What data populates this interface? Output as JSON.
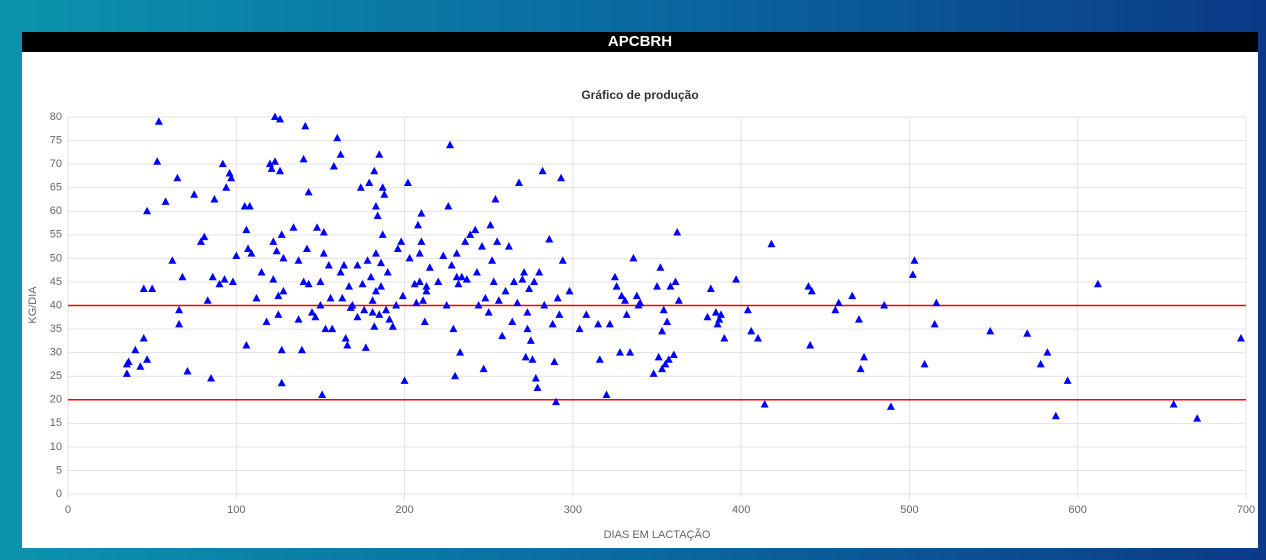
{
  "header": "APCBRH",
  "chart_data": {
    "type": "scatter",
    "title": "Gráfico de produção",
    "xlabel": "DIAS EM LACTAÇÃO",
    "ylabel": "KG/DIA",
    "color": "#0000ff",
    "x": [
      35,
      35,
      36,
      40,
      43,
      45,
      45,
      47,
      47,
      50,
      53,
      54,
      58,
      62,
      65,
      66,
      66,
      68,
      71,
      75,
      79,
      81,
      83,
      85,
      86,
      87,
      90,
      92,
      93,
      94,
      96,
      97,
      98,
      100,
      105,
      106,
      106,
      107,
      108,
      109,
      112,
      115,
      118,
      120,
      121,
      122,
      122,
      123,
      123,
      124,
      125,
      125,
      126,
      126,
      127,
      127,
      127,
      128,
      128,
      134,
      137,
      137,
      139,
      140,
      140,
      141,
      142,
      143,
      143,
      145,
      147,
      148,
      150,
      150,
      151,
      152,
      152,
      153,
      155,
      156,
      157,
      158,
      160,
      162,
      162,
      163,
      164,
      165,
      166,
      167,
      168,
      169,
      172,
      172,
      174,
      175,
      176,
      177,
      178,
      179,
      180,
      181,
      181,
      182,
      182,
      183,
      183,
      183,
      184,
      185,
      185,
      186,
      186,
      187,
      187,
      188,
      189,
      190,
      191,
      193,
      195,
      196,
      198,
      199,
      200,
      202,
      203,
      206,
      207,
      208,
      209,
      209,
      210,
      210,
      211,
      212,
      213,
      213,
      215,
      220,
      223,
      225,
      226,
      227,
      228,
      229,
      230,
      231,
      231,
      232,
      233,
      234,
      236,
      237,
      239,
      242,
      243,
      244,
      246,
      247,
      248,
      250,
      251,
      252,
      253,
      254,
      255,
      256,
      258,
      260,
      262,
      264,
      265,
      267,
      268,
      270,
      271,
      272,
      273,
      273,
      274,
      275,
      276,
      277,
      278,
      279,
      280,
      282,
      283,
      286,
      288,
      289,
      290,
      291,
      292,
      293,
      294,
      298,
      304,
      308,
      315,
      316,
      320,
      322,
      325,
      326,
      328,
      329,
      331,
      332,
      334,
      336,
      338,
      339,
      340,
      348,
      350,
      351,
      352,
      353,
      353,
      354,
      355,
      356,
      357,
      358,
      360,
      361,
      362,
      363,
      380,
      382,
      385,
      386,
      387,
      388,
      390,
      397,
      404,
      406,
      410,
      414,
      418,
      440,
      441,
      442,
      456,
      458,
      466,
      470,
      471,
      473,
      485,
      489,
      502,
      503,
      509,
      515,
      516,
      548,
      570,
      578,
      582,
      587,
      594,
      612,
      657,
      671,
      697
    ],
    "values": [
      25.5,
      27.5,
      28,
      30.5,
      27,
      33,
      43.5,
      28.5,
      60,
      43.5,
      70.5,
      79,
      62,
      49.5,
      67,
      36,
      39,
      46,
      26,
      63.5,
      53.5,
      54.5,
      41,
      24.5,
      46,
      62.5,
      44.5,
      70,
      45.5,
      65,
      68,
      67,
      45,
      50.5,
      61,
      56,
      31.5,
      52,
      61,
      51,
      41.5,
      47,
      36.5,
      70,
      69,
      53.5,
      45.5,
      70.5,
      80,
      51.5,
      38,
      42,
      79.5,
      68.5,
      23.5,
      30.5,
      55,
      50,
      43,
      56.5,
      37,
      49.5,
      30.5,
      71,
      45,
      78,
      52,
      44.5,
      64,
      38.5,
      37.5,
      56.5,
      40,
      45,
      21,
      55.5,
      51,
      35,
      48.5,
      41.5,
      35,
      69.5,
      75.5,
      72,
      47,
      41.5,
      48.5,
      33,
      31.5,
      44,
      39.5,
      40,
      37.5,
      48.5,
      65,
      44.5,
      39,
      31,
      49.5,
      66,
      46,
      38.5,
      41,
      35.5,
      68.5,
      43,
      51,
      61,
      59,
      38,
      72,
      44,
      49,
      55,
      65,
      63.5,
      39,
      47,
      37,
      35.5,
      40,
      52,
      53.5,
      42,
      24,
      66,
      50,
      44.5,
      40.5,
      57,
      51,
      45,
      53.5,
      59.5,
      41,
      36.5,
      44,
      43,
      48,
      45,
      50.5,
      40,
      61,
      74,
      48.5,
      35,
      25,
      51,
      46,
      44.5,
      30,
      46,
      53.5,
      45.5,
      55,
      56,
      47,
      40,
      52.5,
      26.5,
      41.5,
      38.5,
      57,
      49.5,
      45,
      62.5,
      53.5,
      41,
      33.5,
      43,
      52.5,
      36.5,
      45,
      40.5,
      66,
      45.5,
      47,
      29,
      38.5,
      35,
      43.5,
      32.5,
      28.5,
      45,
      24.5,
      22.5,
      47,
      68.5,
      40,
      54,
      36,
      28,
      19.5,
      41.5,
      38,
      67,
      49.5,
      43,
      35,
      38,
      36,
      28.5,
      21,
      36,
      46,
      44,
      30,
      42,
      41,
      38,
      30,
      50,
      42,
      40,
      40.5,
      25.5,
      44,
      29,
      48,
      26.5,
      34.5,
      39,
      27.5,
      36.5,
      28.5,
      44,
      29.5,
      45,
      55.5,
      41,
      37.5,
      43.5,
      38.5,
      36,
      37,
      38,
      33,
      45.5,
      39,
      34.5,
      33,
      19,
      53,
      44,
      31.5,
      43,
      39,
      40.5,
      42,
      37,
      26.5,
      29,
      40,
      18.5,
      46.5,
      49.5,
      27.5,
      36,
      40.5,
      34.5,
      34,
      27.5,
      30,
      16.5,
      24,
      44.5,
      19,
      16,
      33
    ],
    "xlim": [
      0,
      700
    ],
    "xticks": [
      0,
      100,
      200,
      300,
      400,
      500,
      600,
      700
    ],
    "ylim": [
      0,
      80
    ],
    "yticks": [
      0,
      5,
      10,
      15,
      20,
      25,
      30,
      35,
      40,
      45,
      50,
      55,
      60,
      65,
      70,
      75,
      80
    ],
    "grid": true,
    "reference_lines": [
      {
        "value": 40,
        "color": "#ff0000"
      },
      {
        "value": 20,
        "color": "#ff0000"
      }
    ]
  }
}
